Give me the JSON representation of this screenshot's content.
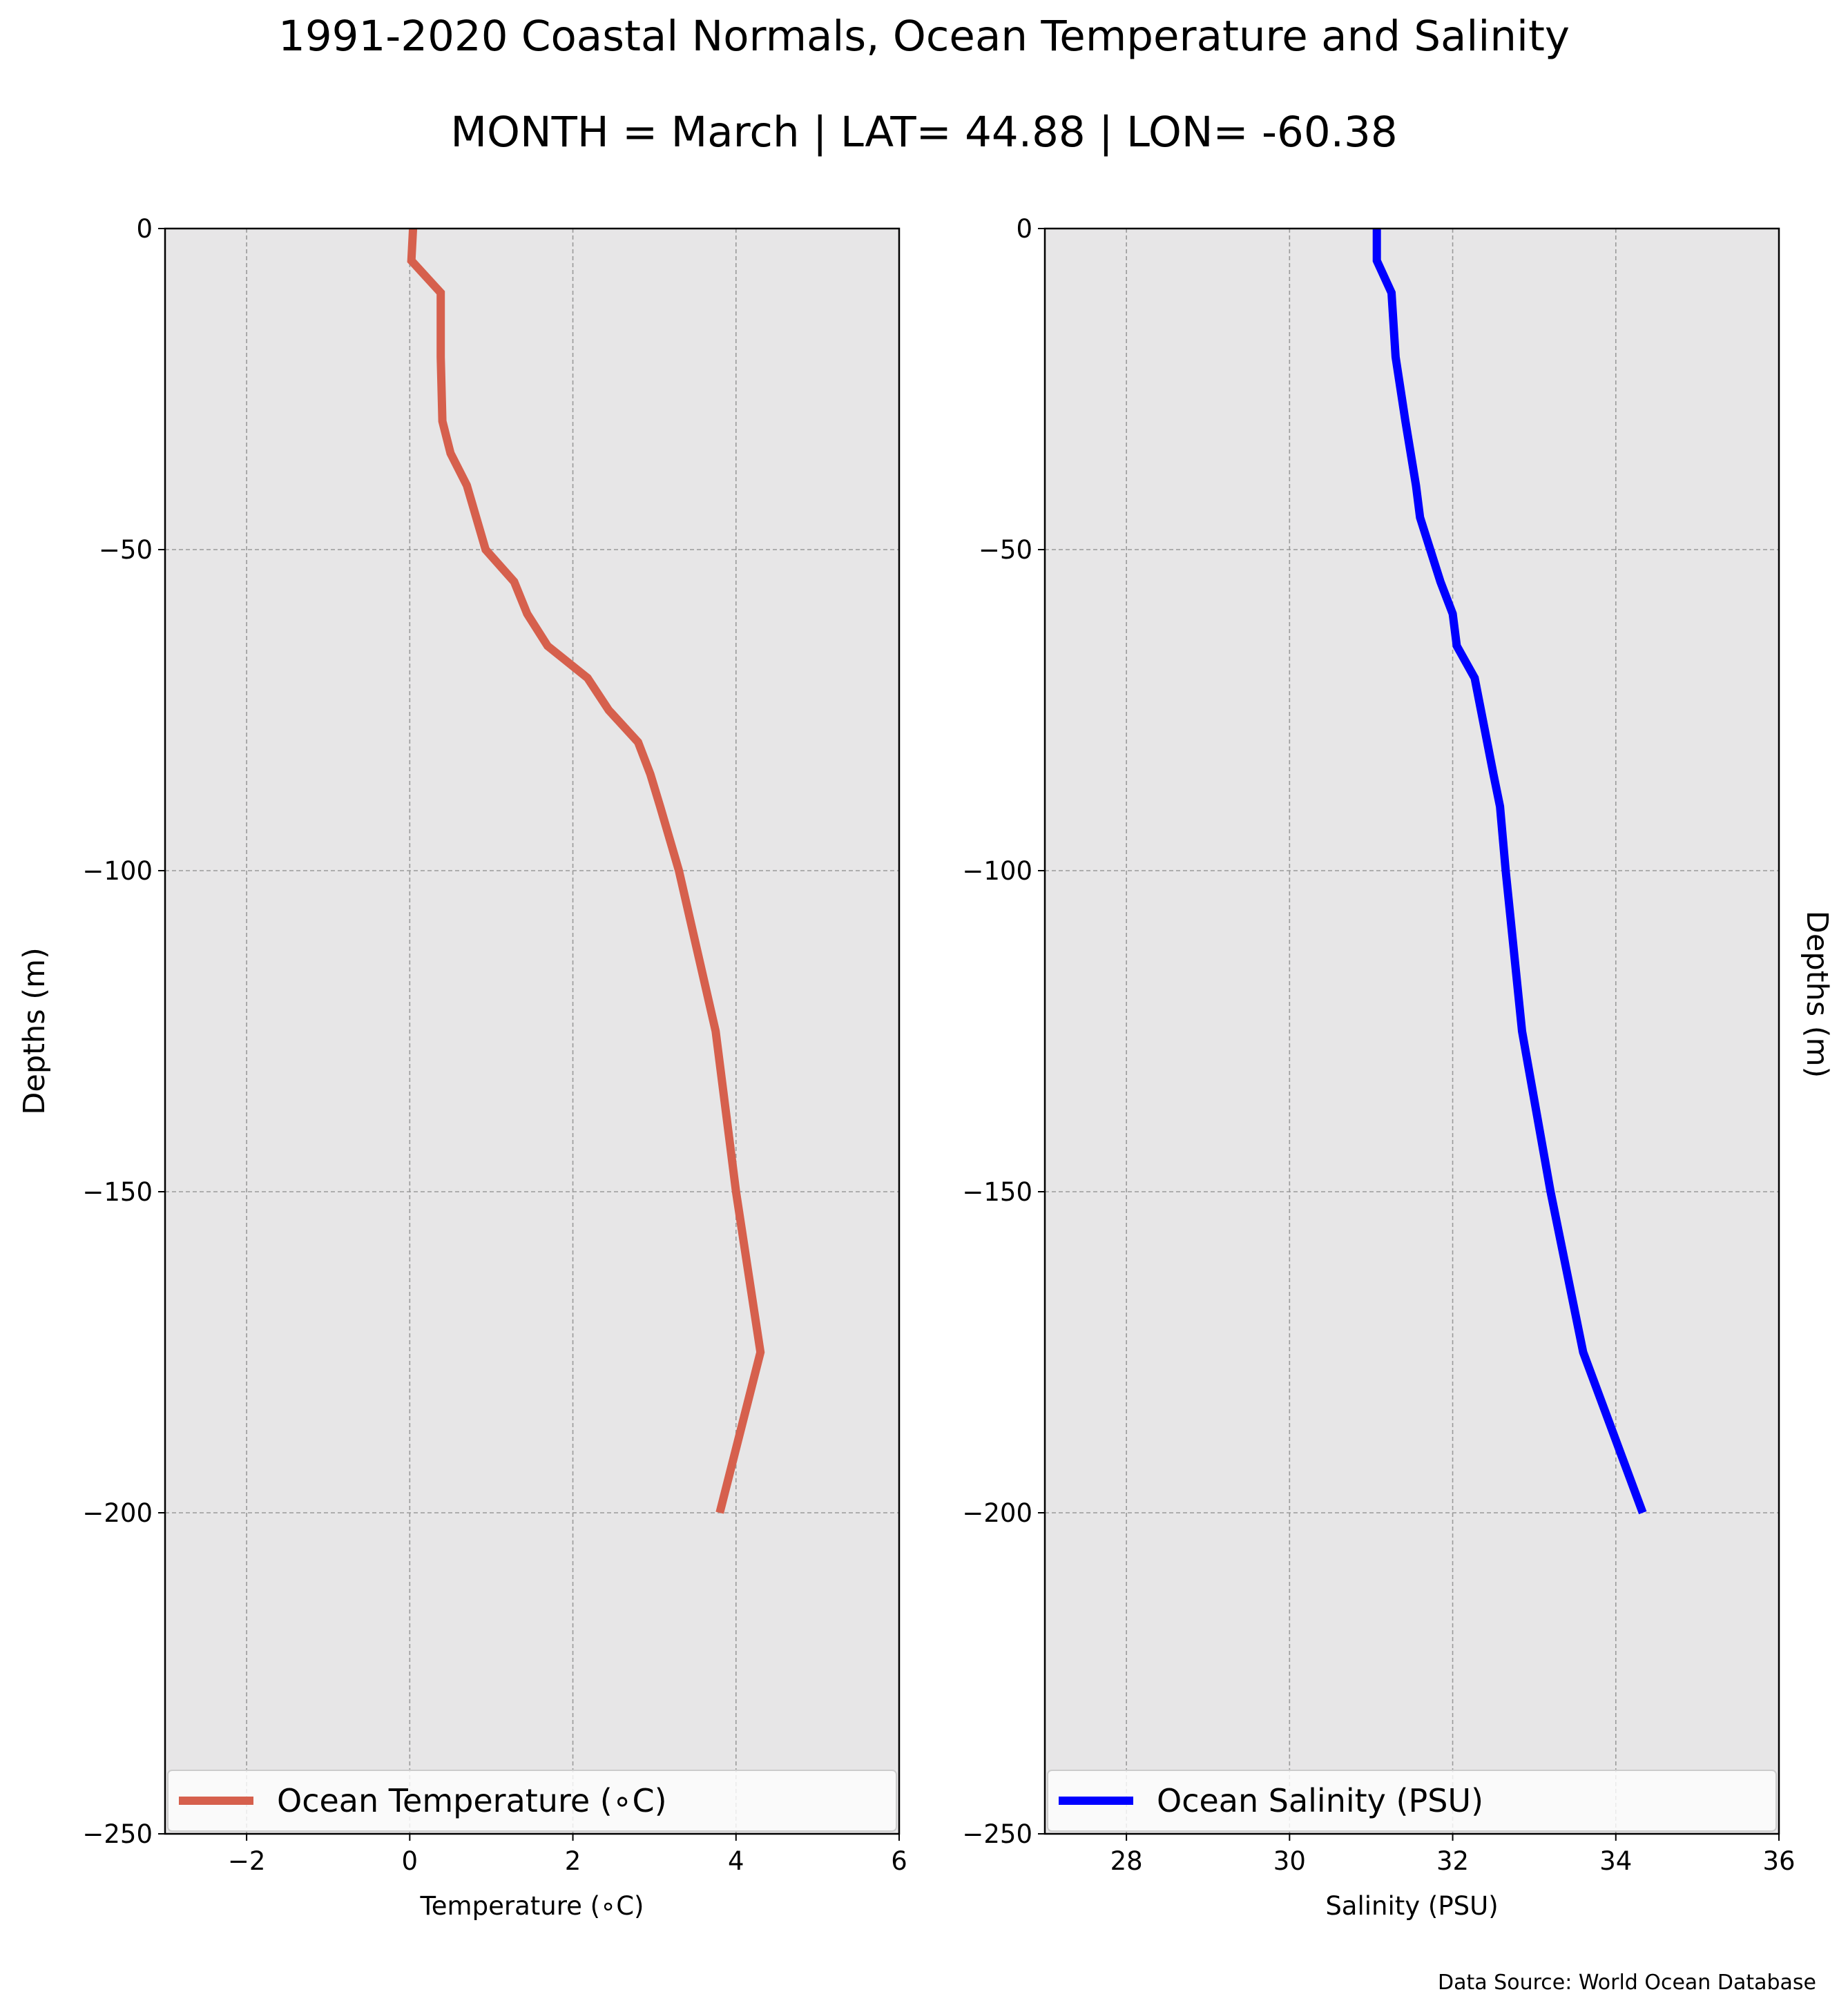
{
  "title": "1991-2020 Coastal Normals, Ocean Temperature and Salinity",
  "subtitle": "MONTH = March | LAT= 44.88 | LON= -60.38",
  "source": "Data Source: World Ocean Database",
  "colors": {
    "panel_bg": "#e7e6e7",
    "temperature": "#d6604d",
    "salinity": "#0000ff",
    "grid": "#9a9a9a"
  },
  "chart_data": [
    {
      "type": "line",
      "xlabel": "Temperature ($^\\circ$C)",
      "xlabel_display": "Temperature (∘C)",
      "ylabel": "Depths (m)",
      "xlim": [
        -3,
        6
      ],
      "ylim": [
        -250,
        0
      ],
      "x_ticks": [
        -2,
        0,
        2,
        4,
        6
      ],
      "x_tick_labels": [
        "−2",
        "0",
        "2",
        "4",
        "6"
      ],
      "y_ticks": [
        0,
        -50,
        -100,
        -150,
        -200,
        -250
      ],
      "y_tick_labels": [
        "0",
        "−50",
        "−100",
        "−150",
        "−200",
        "−250"
      ],
      "grid": true,
      "legend_position": "bottom",
      "series": [
        {
          "name": "Ocean Temperature (∘C)",
          "color": "#d6604d",
          "x": [
            0.04,
            0.02,
            0.38,
            0.38,
            0.4,
            0.5,
            0.7,
            0.93,
            1.28,
            1.44,
            1.69,
            2.18,
            2.44,
            2.8,
            2.95,
            3.07,
            3.3,
            3.75,
            4.0,
            4.3,
            4.0,
            3.8
          ],
          "y": [
            0,
            -5,
            -10,
            -20,
            -30,
            -35,
            -40,
            -50,
            -55,
            -60,
            -65,
            -70,
            -75,
            -80,
            -85,
            -90,
            -100,
            -125,
            -150,
            -175,
            -190,
            -200
          ]
        }
      ]
    },
    {
      "type": "line",
      "xlabel": "Salinity (PSU)",
      "ylabel": "Depths (m)",
      "xlim": [
        27,
        36
      ],
      "ylim": [
        -250,
        0
      ],
      "x_ticks": [
        28,
        30,
        32,
        34,
        36
      ],
      "x_tick_labels": [
        "28",
        "30",
        "32",
        "34",
        "36"
      ],
      "y_ticks": [
        0,
        -50,
        -100,
        -150,
        -200,
        -250
      ],
      "y_tick_labels": [
        "0",
        "−50",
        "−100",
        "−150",
        "−200",
        "−250"
      ],
      "grid": true,
      "legend_position": "bottom",
      "series": [
        {
          "name": "Ocean Salinity (PSU)",
          "color": "#0000ff",
          "x": [
            31.07,
            31.07,
            31.25,
            31.3,
            31.42,
            31.55,
            31.6,
            31.85,
            32.0,
            32.05,
            32.27,
            32.5,
            32.58,
            32.65,
            32.85,
            33.2,
            33.6,
            34.33
          ],
          "y": [
            0,
            -5,
            -10,
            -20,
            -30,
            -40,
            -45,
            -55,
            -60,
            -65,
            -70,
            -85,
            -90,
            -100,
            -125,
            -150,
            -175,
            -200
          ]
        }
      ]
    }
  ]
}
